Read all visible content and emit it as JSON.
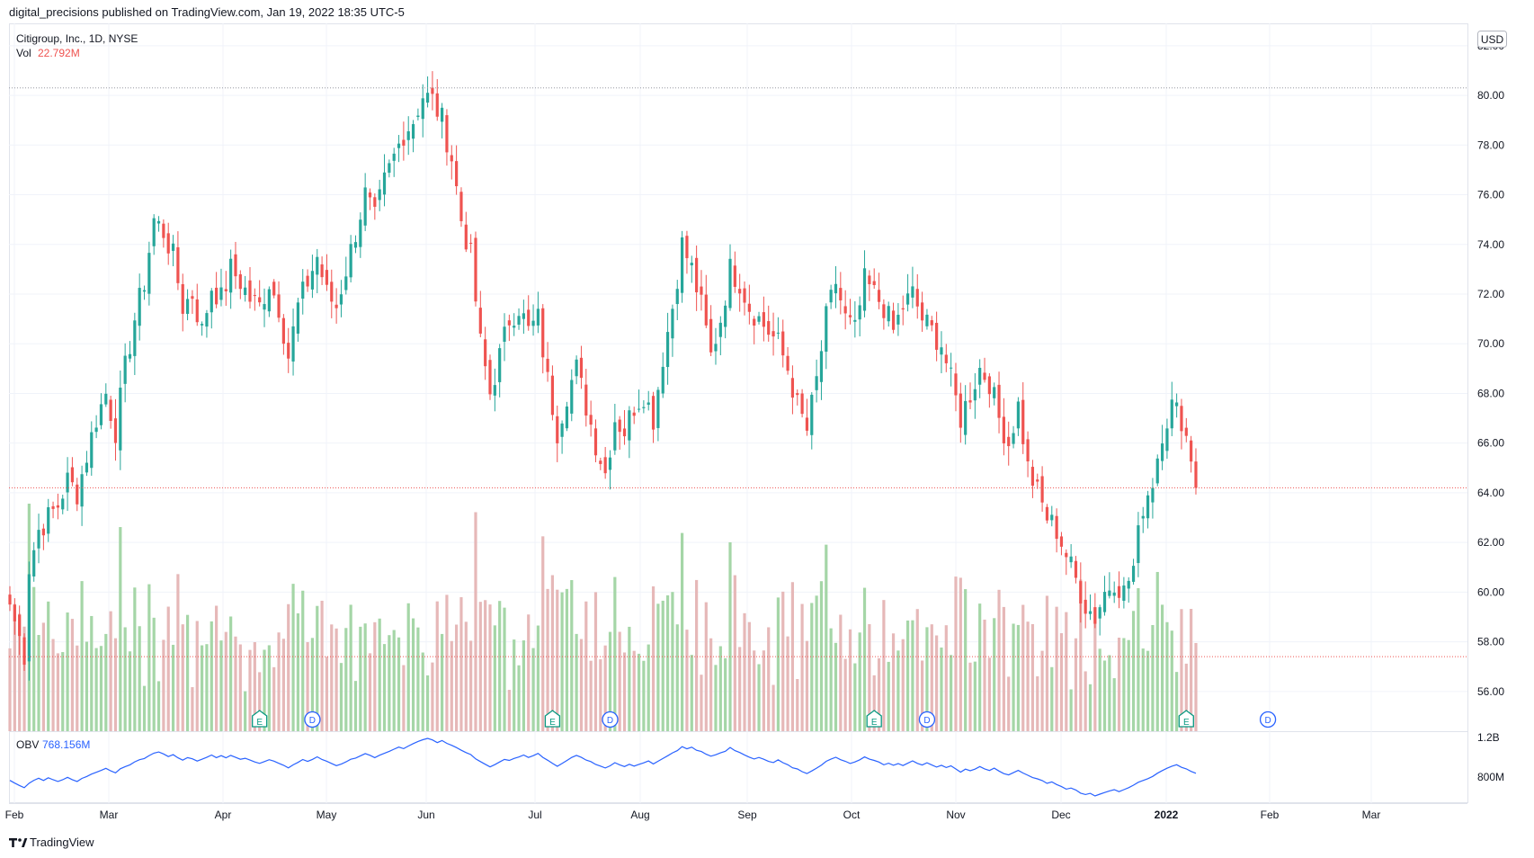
{
  "header": {
    "publisher_line": "digital_precisions published on TradingView.com, Jan 19, 2022 18:35 UTC-5"
  },
  "legend": {
    "symbol_line": "Citigroup, Inc., 1D, NYSE",
    "vol_label": "Vol",
    "vol_value": "22.792M",
    "obv_label": "OBV",
    "obv_value": "768.156M"
  },
  "currency_badge": "USD",
  "footer": {
    "brand": "TradingView"
  },
  "colors": {
    "up": "#26a69a",
    "down": "#ef5350",
    "up_vol": "#a5d6a7",
    "down_vol": "#e6b8b8",
    "obv_line": "#2962ff",
    "grid": "#f0f3fa",
    "axis_text": "#131722"
  },
  "chart_data": {
    "type": "candlestick",
    "title": "Citigroup, Inc., 1D, NYSE",
    "price_axis": {
      "min": 54.4,
      "max": 82.9,
      "ticks": [
        "82.00",
        "80.00",
        "78.00",
        "76.00",
        "74.00",
        "72.00",
        "70.00",
        "68.00",
        "66.00",
        "64.00",
        "62.00",
        "60.00",
        "58.00",
        "56.00"
      ],
      "tick_values": [
        82,
        80,
        78,
        76,
        74,
        72,
        70,
        68,
        66,
        64,
        62,
        60,
        58,
        56
      ]
    },
    "obv_axis": {
      "ticks": [
        "1.2B",
        "800M"
      ]
    },
    "time_axis": {
      "labels": [
        "Feb",
        "Mar",
        "Apr",
        "May",
        "Jun",
        "Jul",
        "Aug",
        "Sep",
        "Oct",
        "Nov",
        "Dec",
        "2022",
        "Feb",
        "Mar"
      ],
      "bold": [
        false,
        false,
        false,
        false,
        false,
        false,
        false,
        false,
        false,
        false,
        false,
        true,
        false,
        false
      ]
    },
    "reference_lines": {
      "high_dotted": 80.3,
      "last_price_dotted": 64.2,
      "volume_level_dotted": 57.4
    },
    "close_path": [
      [
        0,
        59.5
      ],
      [
        3,
        57.5
      ],
      [
        4,
        61.0
      ],
      [
        6,
        62.5
      ],
      [
        8,
        63.0
      ],
      [
        10,
        63.5
      ],
      [
        12,
        64.5
      ],
      [
        14,
        64.0
      ],
      [
        16,
        65.5
      ],
      [
        18,
        67.0
      ],
      [
        20,
        68.0
      ],
      [
        22,
        66.5
      ],
      [
        24,
        69.0
      ],
      [
        26,
        71.0
      ],
      [
        28,
        72.5
      ],
      [
        30,
        75.0
      ],
      [
        32,
        74.5
      ],
      [
        34,
        73.5
      ],
      [
        36,
        71.5
      ],
      [
        38,
        72.0
      ],
      [
        40,
        70.5
      ],
      [
        42,
        72.3
      ],
      [
        44,
        71.8
      ],
      [
        46,
        73.0
      ],
      [
        48,
        72.5
      ],
      [
        50,
        71.8
      ],
      [
        52,
        71.5
      ],
      [
        54,
        72.5
      ],
      [
        56,
        71.5
      ],
      [
        58,
        69.5
      ],
      [
        60,
        71.5
      ],
      [
        62,
        72.5
      ],
      [
        64,
        73.5
      ],
      [
        66,
        72.0
      ],
      [
        68,
        71.5
      ],
      [
        70,
        73.0
      ],
      [
        72,
        74.5
      ],
      [
        74,
        76.0
      ],
      [
        76,
        75.0
      ],
      [
        78,
        76.5
      ],
      [
        80,
        77.5
      ],
      [
        82,
        78.5
      ],
      [
        84,
        79.0
      ],
      [
        86,
        80.0
      ],
      [
        88,
        79.8
      ],
      [
        90,
        79.0
      ],
      [
        92,
        77.5
      ],
      [
        94,
        75.0
      ],
      [
        96,
        73.5
      ],
      [
        98,
        70.0
      ],
      [
        100,
        68.0
      ],
      [
        102,
        69.5
      ],
      [
        104,
        71.0
      ],
      [
        106,
        71.5
      ],
      [
        108,
        70.5
      ],
      [
        110,
        71.0
      ],
      [
        112,
        68.5
      ],
      [
        114,
        66.5
      ],
      [
        116,
        68.0
      ],
      [
        118,
        69.0
      ],
      [
        120,
        67.5
      ],
      [
        122,
        66.0
      ],
      [
        124,
        64.8
      ],
      [
        126,
        67.0
      ],
      [
        128,
        66.5
      ],
      [
        130,
        67.5
      ],
      [
        132,
        68.0
      ],
      [
        134,
        67.0
      ],
      [
        136,
        69.5
      ],
      [
        138,
        71.5
      ],
      [
        140,
        74.0
      ],
      [
        142,
        73.0
      ],
      [
        144,
        71.5
      ],
      [
        146,
        69.5
      ],
      [
        148,
        71.0
      ],
      [
        150,
        73.0
      ],
      [
        152,
        72.5
      ],
      [
        154,
        71.5
      ],
      [
        156,
        71.0
      ],
      [
        158,
        70.5
      ],
      [
        160,
        70.0
      ],
      [
        162,
        69.0
      ],
      [
        164,
        67.5
      ],
      [
        166,
        66.5
      ],
      [
        168,
        68.5
      ],
      [
        170,
        71.0
      ],
      [
        172,
        72.5
      ],
      [
        174,
        71.0
      ],
      [
        176,
        70.5
      ],
      [
        178,
        72.5
      ],
      [
        180,
        72.0
      ],
      [
        182,
        71.5
      ],
      [
        184,
        70.5
      ],
      [
        186,
        71.5
      ],
      [
        188,
        72.0
      ],
      [
        190,
        71.0
      ],
      [
        192,
        70.5
      ],
      [
        194,
        70.0
      ],
      [
        196,
        68.5
      ],
      [
        198,
        67.0
      ],
      [
        200,
        68.0
      ],
      [
        202,
        69.0
      ],
      [
        204,
        68.5
      ],
      [
        206,
        67.0
      ],
      [
        208,
        66.0
      ],
      [
        210,
        67.5
      ],
      [
        212,
        65.0
      ],
      [
        214,
        64.0
      ],
      [
        216,
        63.0
      ],
      [
        218,
        62.5
      ],
      [
        220,
        61.5
      ],
      [
        222,
        60.5
      ],
      [
        224,
        59.5
      ],
      [
        226,
        59.0
      ],
      [
        228,
        60.0
      ],
      [
        230,
        60.5
      ],
      [
        232,
        60.0
      ],
      [
        234,
        61.0
      ],
      [
        236,
        63.5
      ],
      [
        238,
        64.5
      ],
      [
        240,
        66.5
      ],
      [
        242,
        67.5
      ],
      [
        244,
        67.0
      ],
      [
        246,
        65.5
      ],
      [
        247,
        64.2
      ]
    ],
    "volume_range_m": [
      5,
      85
    ],
    "earnings_markers": [
      52,
      113,
      180,
      245
    ],
    "dividend_markers": [
      63,
      125,
      191,
      262
    ],
    "last_close": 64.2,
    "last_volume": "22.792M",
    "obv_last": "768.156M"
  }
}
